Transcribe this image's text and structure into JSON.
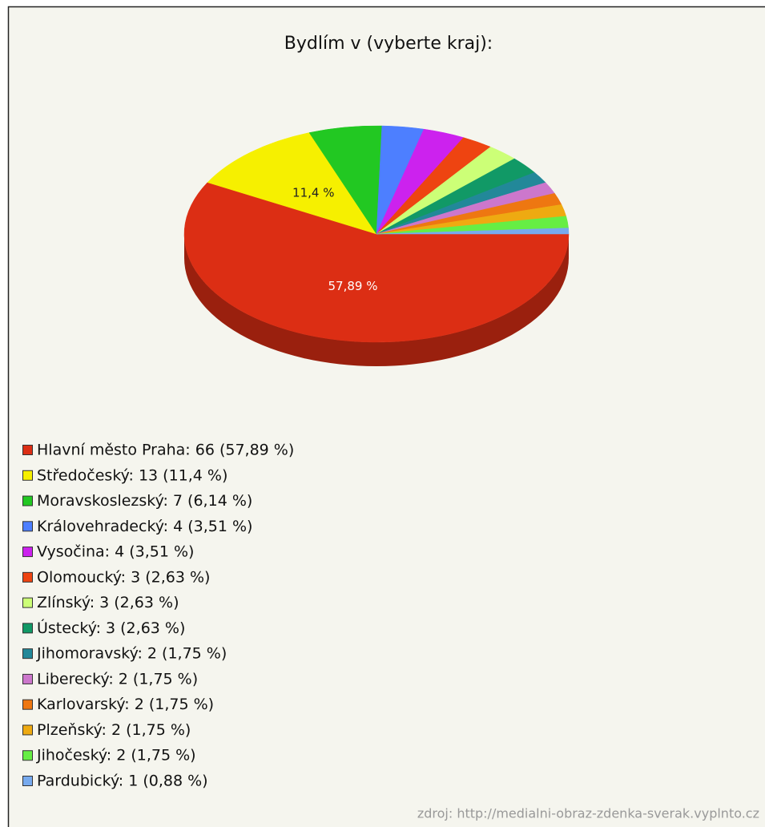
{
  "chart_data": {
    "type": "pie",
    "title": "Bydlím v (vyberte kraj):",
    "categories": [
      "Hlavní město Praha",
      "Středočeský",
      "Moravskoslezský",
      "Královehradecký",
      "Vysočina",
      "Olomoucký",
      "Zlínský",
      "Ústecký",
      "Jihomoravský",
      "Liberecký",
      "Karlovarský",
      "Plzeňský",
      "Jihočeský",
      "Pardubický"
    ],
    "values": [
      57.89,
      11.4,
      6.14,
      3.51,
      3.51,
      2.63,
      2.63,
      2.63,
      1.75,
      1.75,
      1.75,
      1.75,
      1.75,
      0.88
    ],
    "value_labels": [
      "57,89 %",
      "11,4 %",
      null,
      null,
      null,
      null,
      null,
      null,
      null,
      null,
      null,
      null,
      null,
      null
    ],
    "legend_labels": [
      "Hlavní město Praha: 66 (57,89 %)",
      "Středočeský: 13 (11,4 %)",
      "Moravskoslezský: 7 (6,14 %)",
      "Královehradecký: 4 (3,51 %)",
      "Vysočina: 4 (3,51 %)",
      "Olomoucký: 3 (2,63 %)",
      "Zlínský: 3 (2,63 %)",
      "Ústecký: 3 (2,63 %)",
      "Jihomoravský: 2 (1,75 %)",
      "Liberecký: 2 (1,75 %)",
      "Karlovarský: 2 (1,75 %)",
      "Plzeňský: 2 (1,75 %)",
      "Jihočeský: 2 (1,75 %)",
      "Pardubický: 1 (0,88 %)"
    ],
    "colors": [
      "#dc2e14",
      "#f6f000",
      "#22c822",
      "#4d7fff",
      "#cc22ee",
      "#ee4411",
      "#ccff77",
      "#119966",
      "#228899",
      "#cc77cc",
      "#ee7711",
      "#eeaa11",
      "#66ee44",
      "#77aaee"
    ],
    "source": "zdroj: http://medialni-obraz-zdenka-sverak.vyplnto.cz"
  }
}
